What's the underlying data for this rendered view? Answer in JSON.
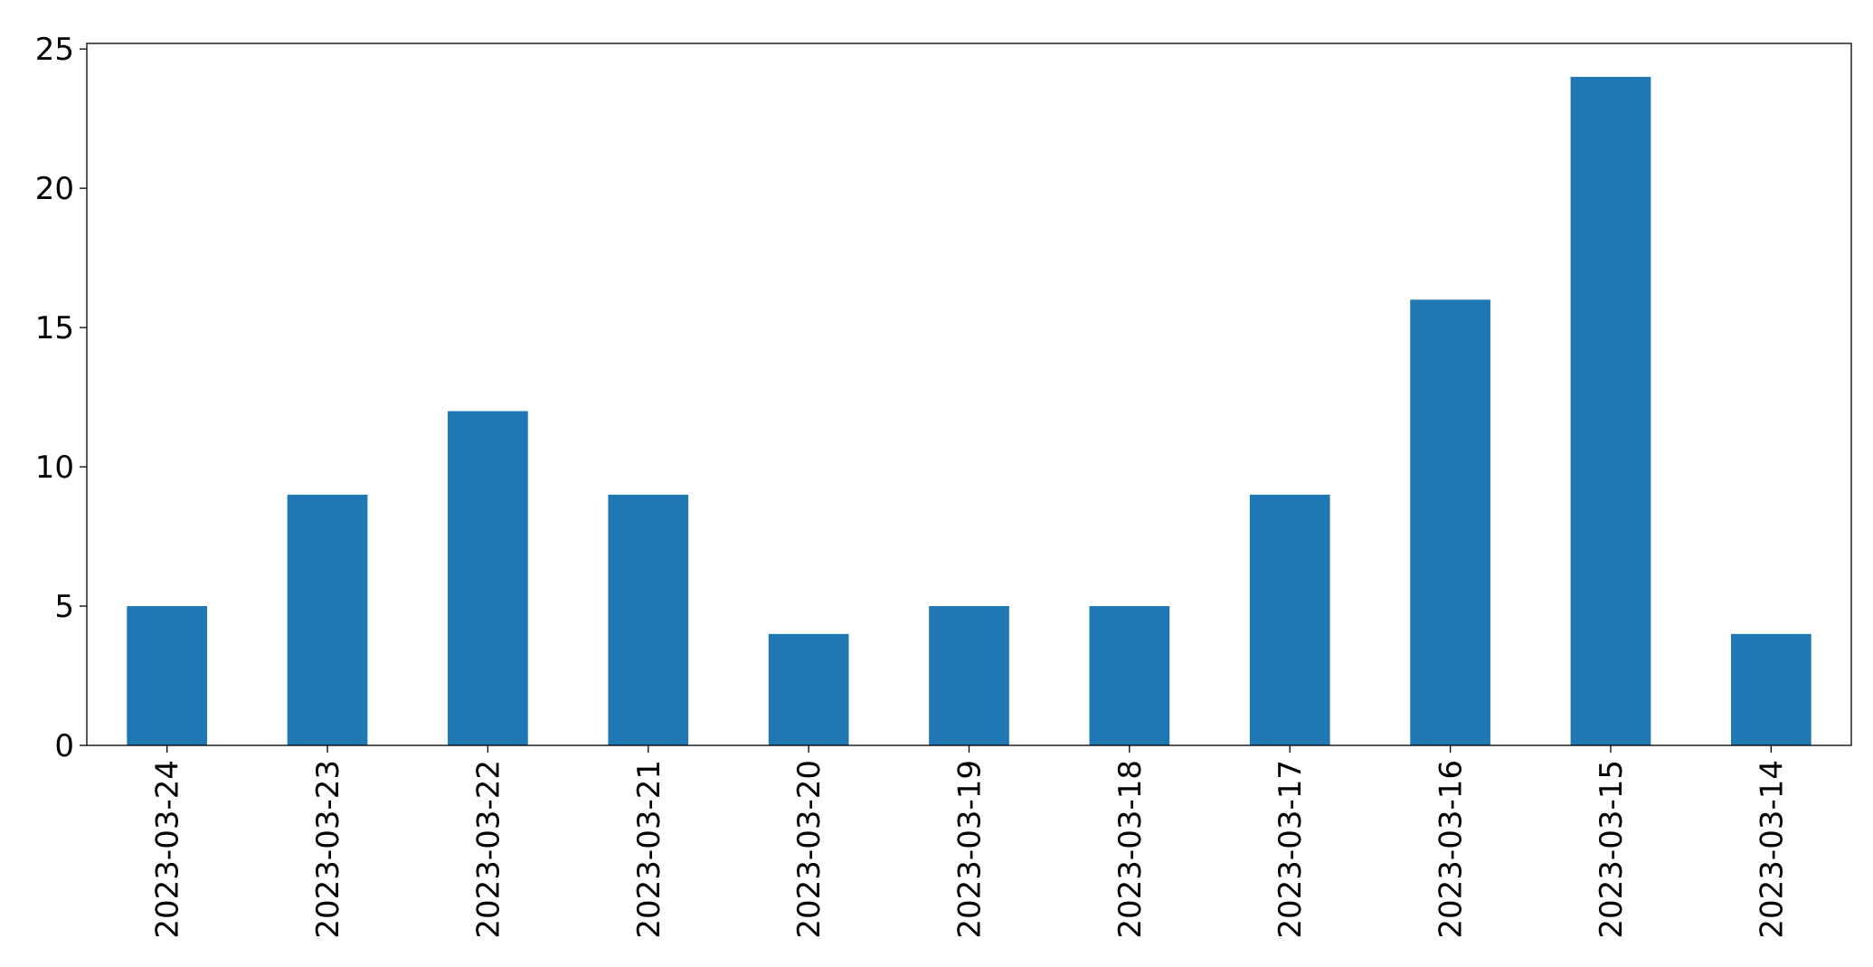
{
  "chart_data": {
    "type": "bar",
    "categories": [
      "2023-03-24",
      "2023-03-23",
      "2023-03-22",
      "2023-03-21",
      "2023-03-20",
      "2023-03-19",
      "2023-03-18",
      "2023-03-17",
      "2023-03-16",
      "2023-03-15",
      "2023-03-14"
    ],
    "values": [
      5,
      9,
      12,
      9,
      4,
      5,
      5,
      9,
      16,
      24,
      4
    ],
    "color": "#1f77b4",
    "ylim": [
      0,
      25.2
    ],
    "yticks": [
      0,
      5,
      10,
      15,
      20,
      25
    ],
    "grid": false
  }
}
